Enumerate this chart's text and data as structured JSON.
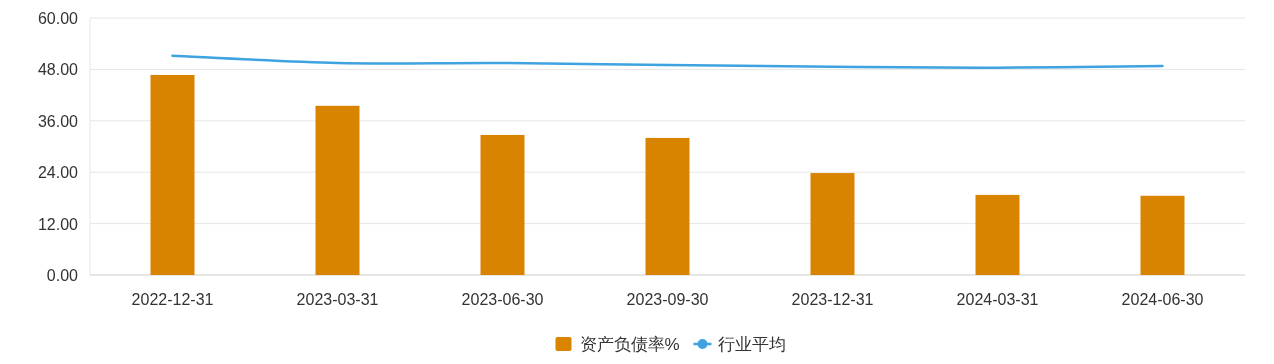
{
  "chart_data": {
    "type": "bar",
    "categories": [
      "2022-12-31",
      "2023-03-31",
      "2023-06-30",
      "2023-09-30",
      "2023-12-31",
      "2024-03-31",
      "2024-06-30"
    ],
    "series": [
      {
        "name": "资产负债率%",
        "color": "#d98400",
        "values": [
          46.7,
          39.5,
          32.7,
          32.0,
          23.8,
          18.7,
          18.5
        ]
      },
      {
        "name": "行业平均",
        "type": "line",
        "color": "#3ea3e0",
        "marker": "none",
        "values": [
          51.2,
          49.5,
          49.5,
          49.0,
          48.6,
          48.4,
          48.8
        ]
      }
    ],
    "ylim": [
      0,
      60
    ],
    "yticks": [
      {
        "value": 0,
        "label": "0.00"
      },
      {
        "value": 12,
        "label": "12.00"
      },
      {
        "value": 24,
        "label": "24.00"
      },
      {
        "value": 36,
        "label": "36.00"
      },
      {
        "value": 48,
        "label": "48.00"
      },
      {
        "value": 60,
        "label": "60.00"
      }
    ],
    "grid": "y",
    "legend": "bottom"
  }
}
